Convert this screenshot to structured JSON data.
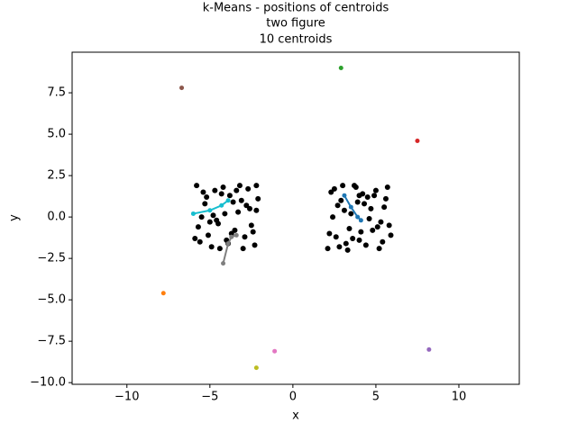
{
  "chart_data": {
    "type": "scatter",
    "title": [
      "k-Means - positions of centroids",
      "two figure",
      "10 centroids"
    ],
    "xlabel": "x",
    "ylabel": "y",
    "xlim": [
      -13.3,
      13.64
    ],
    "ylim": [
      -10.1,
      9.95
    ],
    "xticks": [
      {
        "value": -10,
        "label": "−10"
      },
      {
        "value": -5,
        "label": "−5"
      },
      0,
      5,
      10
    ],
    "yticks": [
      {
        "value": -10,
        "label": "−10.0"
      },
      {
        "value": -7.5,
        "label": "−7.5"
      },
      {
        "value": -5,
        "label": "−5.0"
      },
      {
        "value": -2.5,
        "label": "−2.5"
      },
      {
        "value": 0,
        "label": "0.0"
      },
      {
        "value": 2.5,
        "label": "2.5"
      },
      {
        "value": 5,
        "label": "5.0"
      },
      {
        "value": 7.5,
        "label": "7.5"
      }
    ],
    "grid": false,
    "series": [
      {
        "color": "#000000",
        "mode": "markers",
        "x": [
          -5.8,
          -5.6,
          -5.3,
          -5.0,
          -4.7,
          -4.4,
          -4.1,
          -3.8,
          -3.5,
          -3.2,
          -2.9,
          -2.6,
          -2.3,
          -2.1,
          -5.7,
          -5.4,
          -5.1,
          -4.8,
          -4.5,
          -4.2,
          -3.9,
          -3.6,
          -3.3,
          -3.0,
          -2.7,
          -2.4,
          -2.2,
          -5.9,
          -5.2,
          -4.6,
          -4.0,
          -3.4,
          -2.8,
          -2.5,
          -5.5,
          -4.9,
          -4.3,
          -3.7,
          -3.1,
          -2.2
        ],
        "y": [
          1.9,
          -1.5,
          0.8,
          -0.3,
          1.6,
          -1.9,
          0.2,
          1.3,
          -0.8,
          1.9,
          -1.2,
          0.5,
          -1.7,
          1.1,
          -0.6,
          1.5,
          -1.1,
          0.1,
          -0.4,
          1.8,
          -1.6,
          0.9,
          0.3,
          -1.9,
          1.7,
          -0.9,
          0.4,
          -1.3,
          1.2,
          -0.2,
          -1.4,
          1.6,
          0.7,
          -0.5,
          0.0,
          -1.8,
          1.4,
          -1.0,
          1.0,
          1.9
        ]
      },
      {
        "color": "#000000",
        "mode": "markers",
        "x": [
          2.2,
          2.5,
          2.8,
          3.1,
          3.4,
          3.7,
          4.0,
          4.3,
          4.6,
          4.9,
          5.2,
          5.5,
          5.8,
          2.3,
          2.6,
          2.9,
          3.2,
          3.5,
          3.8,
          4.1,
          4.4,
          4.7,
          5.0,
          5.3,
          5.6,
          5.9,
          2.4,
          3.0,
          3.6,
          4.2,
          4.8,
          5.4,
          2.7,
          3.3,
          3.9,
          4.5,
          5.1,
          5.7,
          2.1,
          4.0
        ],
        "y": [
          -1.0,
          1.7,
          -1.8,
          0.4,
          -0.7,
          1.9,
          -1.4,
          0.8,
          -0.1,
          1.3,
          -1.9,
          0.6,
          -0.5,
          1.5,
          -1.2,
          1.0,
          -1.6,
          0.2,
          1.8,
          -0.9,
          -1.7,
          0.5,
          1.6,
          -0.3,
          1.1,
          -1.1,
          0.0,
          1.9,
          -1.3,
          1.4,
          -0.8,
          -1.5,
          0.7,
          -2.0,
          0.9,
          1.2,
          -0.6,
          1.8,
          -1.9,
          1.3
        ]
      },
      {
        "color": "#1f77b4",
        "mode": "lines+markers",
        "x": [
          3.1,
          3.5,
          3.9,
          4.1
        ],
        "y": [
          1.3,
          0.6,
          0.0,
          -0.2
        ]
      },
      {
        "color": "#ff7f0e",
        "mode": "lines+markers",
        "x": [
          -7.8
        ],
        "y": [
          -4.6
        ]
      },
      {
        "color": "#2ca02c",
        "mode": "lines+markers",
        "x": [
          2.9
        ],
        "y": [
          9.0
        ]
      },
      {
        "color": "#d62728",
        "mode": "lines+markers",
        "x": [
          7.5
        ],
        "y": [
          4.6
        ]
      },
      {
        "color": "#9467bd",
        "mode": "lines+markers",
        "x": [
          8.2
        ],
        "y": [
          -8.0
        ]
      },
      {
        "color": "#8c564b",
        "mode": "lines+markers",
        "x": [
          -6.7
        ],
        "y": [
          7.8
        ]
      },
      {
        "color": "#e377c2",
        "mode": "lines+markers",
        "x": [
          -1.1
        ],
        "y": [
          -8.1
        ]
      },
      {
        "color": "#7f7f7f",
        "mode": "lines+markers",
        "x": [
          -4.2,
          -3.9,
          -3.7,
          -3.4
        ],
        "y": [
          -2.8,
          -1.6,
          -1.2,
          -1.1
        ]
      },
      {
        "color": "#bcbd22",
        "mode": "lines+markers",
        "x": [
          -2.2
        ],
        "y": [
          -9.1
        ]
      },
      {
        "color": "#17becf",
        "mode": "lines+markers",
        "x": [
          -6.0,
          -5.0,
          -4.3,
          -3.9
        ],
        "y": [
          0.2,
          0.4,
          0.7,
          1.0
        ]
      }
    ]
  }
}
